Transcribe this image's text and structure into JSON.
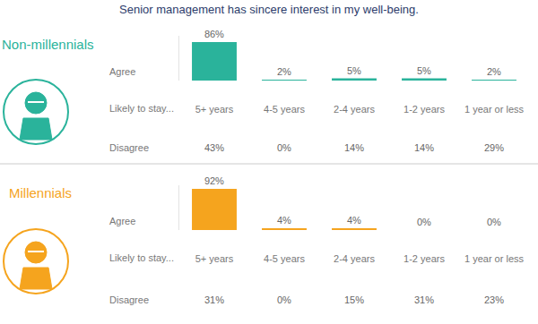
{
  "title": "Senior management has sincere interest in my well-being.",
  "chart_data": [
    {
      "type": "bar",
      "title": "Non-millennials",
      "color": "#2ab39b",
      "xlabel": "Likely to stay...",
      "categories": [
        "5+ years",
        "4-5 years",
        "2-4 years",
        "1-2 years",
        "1 year or less"
      ],
      "series": [
        {
          "name": "Agree",
          "values": [
            86,
            2,
            5,
            5,
            2
          ],
          "value_labels": [
            "86%",
            "2%",
            "5%",
            "5%",
            "2%"
          ]
        },
        {
          "name": "Disagree",
          "type": "text",
          "values": [
            43,
            0,
            14,
            14,
            29
          ],
          "value_labels": [
            "43%",
            "0%",
            "14%",
            "14%",
            "29%"
          ]
        }
      ],
      "ylim": [
        0,
        100
      ],
      "tick_labels": "x",
      "data_labels": true,
      "grid": false
    },
    {
      "type": "bar",
      "title": "Millennials",
      "color": "#f5a41e",
      "xlabel": "Likely to stay...",
      "categories": [
        "5+ years",
        "4-5 years",
        "2-4 years",
        "1-2 years",
        "1 year or less"
      ],
      "series": [
        {
          "name": "Agree",
          "values": [
            92,
            4,
            4,
            0,
            0
          ],
          "value_labels": [
            "92%",
            "4%",
            "4%",
            "0%",
            "0%"
          ]
        },
        {
          "name": "Disagree",
          "type": "text",
          "values": [
            31,
            0,
            15,
            31,
            23
          ],
          "value_labels": [
            "31%",
            "0%",
            "15%",
            "31%",
            "23%"
          ]
        }
      ],
      "ylim": [
        0,
        100
      ],
      "tick_labels": "x",
      "data_labels": true,
      "grid": false
    }
  ]
}
